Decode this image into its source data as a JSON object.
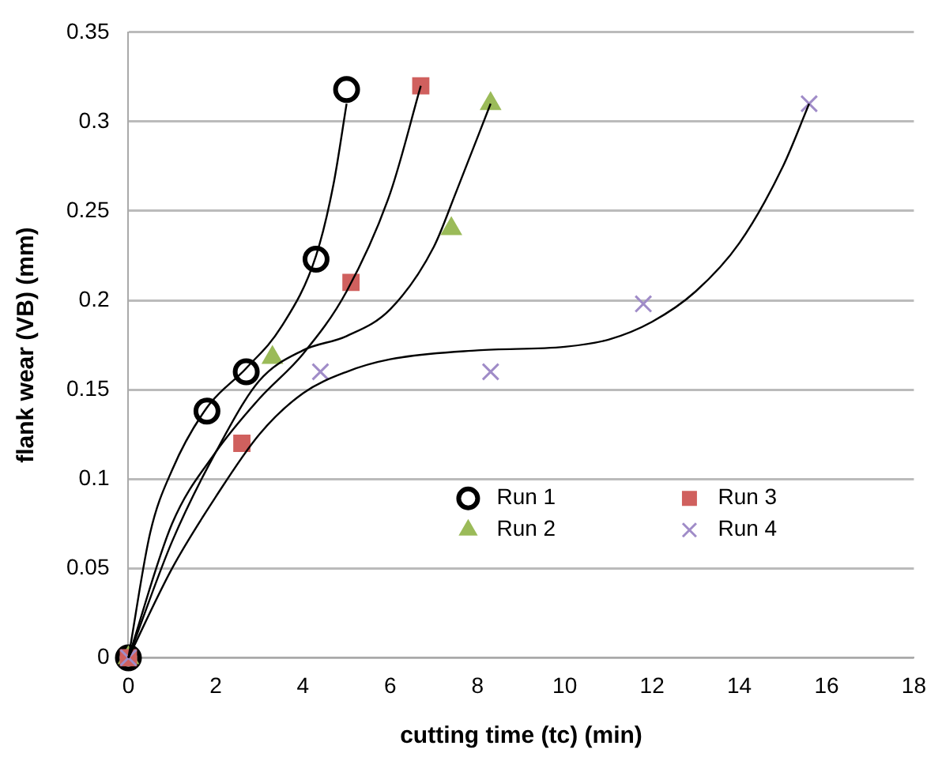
{
  "chart_data": {
    "type": "scatter",
    "xlabel": "cutting time (tc) (min)",
    "ylabel": "flank wear (VB) (mm)",
    "xlim": [
      0,
      18
    ],
    "xticks": [
      0,
      2,
      4,
      6,
      8,
      10,
      12,
      14,
      16,
      18
    ],
    "ylim": [
      0,
      0.35
    ],
    "yticks": [
      0,
      0.05,
      0.1,
      0.15,
      0.2,
      0.25,
      0.3,
      0.35
    ],
    "grid": "y",
    "legend": "bottom right",
    "series": [
      {
        "name": "Run 1",
        "color": "#000000",
        "marker": "circle",
        "x": [
          0,
          1.8,
          2.7,
          4.3,
          5.0
        ],
        "values": [
          0,
          0.138,
          0.16,
          0.223,
          0.318
        ]
      },
      {
        "name": "Run 2",
        "color": "#9bbb59",
        "marker": "triangle",
        "x": [
          0,
          3.3,
          7.4,
          8.3
        ],
        "values": [
          0,
          0.168,
          0.24,
          0.31
        ]
      },
      {
        "name": "Run 3",
        "color": "#d0605e",
        "marker": "square",
        "x": [
          0,
          2.6,
          5.1,
          6.7
        ],
        "values": [
          0,
          0.12,
          0.21,
          0.32
        ]
      },
      {
        "name": "Run 4",
        "color": "#a08cc8",
        "marker": "cross",
        "x": [
          0,
          4.4,
          8.3,
          11.8,
          15.6
        ],
        "values": [
          0,
          0.16,
          0.16,
          0.198,
          0.31
        ]
      },
      {
        "type": "line",
        "color": "#000000",
        "marker": "none",
        "x": [
          0,
          0.5,
          1,
          1.8,
          2.7,
          3.5,
          4.3,
          4.7,
          5
        ],
        "values": [
          0,
          0.07,
          0.105,
          0.14,
          0.162,
          0.185,
          0.225,
          0.265,
          0.31
        ]
      },
      {
        "type": "line",
        "color": "#000000",
        "marker": "none",
        "x": [
          0,
          1,
          2,
          3,
          4,
          5,
          6,
          7,
          7.5,
          8.3
        ],
        "values": [
          0,
          0.065,
          0.115,
          0.155,
          0.172,
          0.18,
          0.195,
          0.23,
          0.26,
          0.31
        ]
      },
      {
        "type": "line",
        "color": "#000000",
        "marker": "none",
        "x": [
          0,
          1,
          2,
          3,
          4,
          5,
          6,
          6.7
        ],
        "values": [
          0,
          0.075,
          0.115,
          0.145,
          0.17,
          0.205,
          0.26,
          0.32
        ]
      },
      {
        "type": "line",
        "color": "#000000",
        "marker": "none",
        "x": [
          0,
          1,
          2,
          3,
          4,
          5,
          6,
          8,
          10,
          11,
          12,
          13,
          14,
          15,
          15.6
        ],
        "values": [
          0,
          0.05,
          0.09,
          0.125,
          0.148,
          0.16,
          0.167,
          0.172,
          0.174,
          0.178,
          0.188,
          0.205,
          0.232,
          0.275,
          0.31
        ]
      }
    ]
  }
}
